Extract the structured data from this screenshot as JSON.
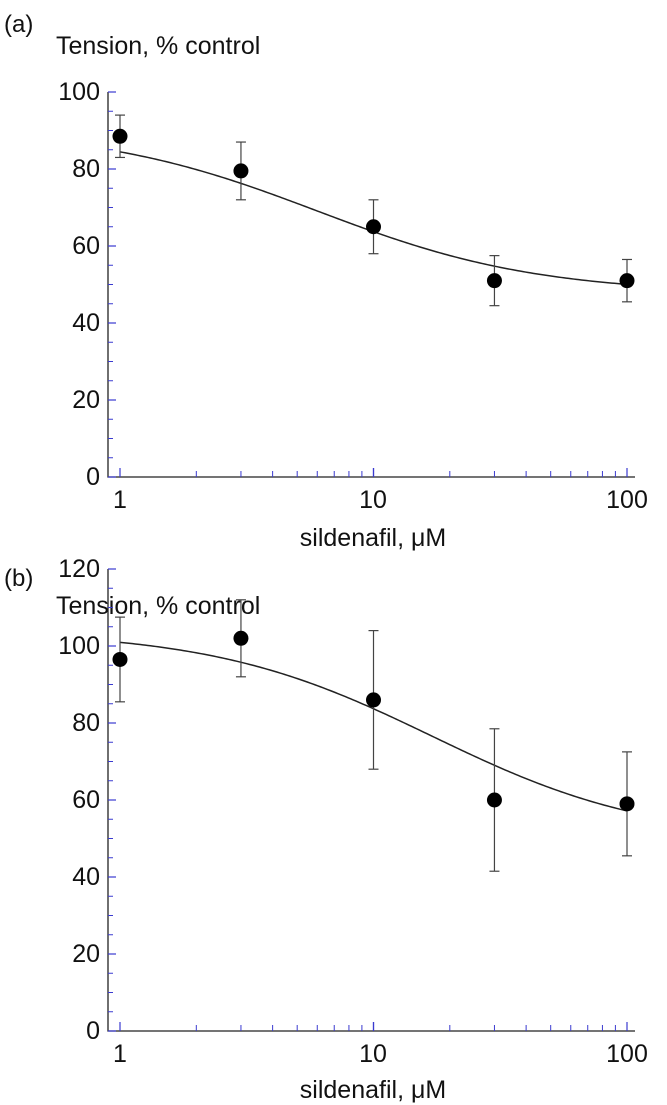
{
  "chart_data": [
    {
      "type": "scatter",
      "panel_label": "(a)",
      "ylabel": "Tension, % control",
      "xlabel": "sildenafil, μM",
      "xscale": "log",
      "xlim": [
        1,
        100
      ],
      "ylim": [
        0,
        100
      ],
      "xticks": [
        "1",
        "10",
        "100"
      ],
      "yticks": [
        "0",
        "20",
        "40",
        "60",
        "80",
        "100"
      ],
      "points": [
        {
          "x": 1,
          "y": 88.5,
          "err": 5.5
        },
        {
          "x": 3,
          "y": 79.5,
          "err": 7.5
        },
        {
          "x": 10,
          "y": 65,
          "err": 7
        },
        {
          "x": 30,
          "y": 51,
          "err": 6.5
        },
        {
          "x": 100,
          "y": 51,
          "err": 5.5
        }
      ],
      "fit": {
        "top": 90.6,
        "bottom": 47.6,
        "ic50": 6,
        "hill": 1
      }
    },
    {
      "type": "scatter",
      "panel_label": "(b)",
      "ylabel": "Tension, % control",
      "xlabel": "sildenafil, μM",
      "xscale": "log",
      "xlim": [
        1,
        100
      ],
      "ylim": [
        0,
        120
      ],
      "xticks": [
        "1",
        "10",
        "100"
      ],
      "yticks": [
        "0",
        "20",
        "40",
        "60",
        "80",
        "100",
        "120"
      ],
      "points": [
        {
          "x": 1,
          "y": 96.5,
          "err": 11
        },
        {
          "x": 3,
          "y": 102,
          "err": 10
        },
        {
          "x": 10,
          "y": 86,
          "err": 18
        },
        {
          "x": 30,
          "y": 60,
          "err": 18.5
        },
        {
          "x": 100,
          "y": 59,
          "err": 13.5
        }
      ],
      "fit": {
        "top": 104,
        "bottom": 49.2,
        "ic50": 17,
        "hill": 1
      }
    }
  ]
}
